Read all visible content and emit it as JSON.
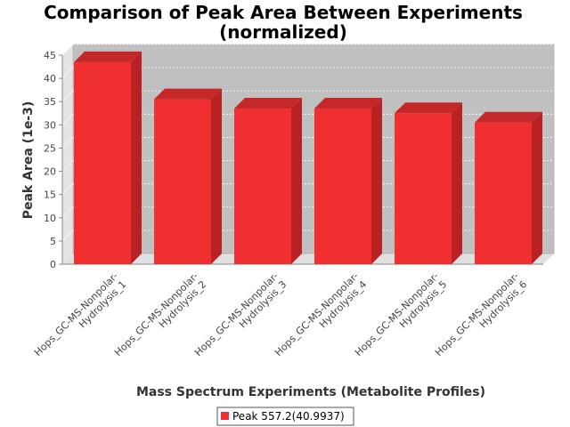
{
  "chart_data": {
    "type": "bar",
    "title_lines": [
      "Comparison of Peak Area Between Experiments",
      "(normalized)"
    ],
    "xlabel": "Mass Spectrum Experiments (Metabolite Profiles)",
    "ylabel": "Peak Area (1e-3)",
    "ylim": [
      0,
      45
    ],
    "yticks": [
      0,
      5,
      10,
      15,
      20,
      25,
      30,
      35,
      40,
      45
    ],
    "grid": true,
    "legend_position": "bottom-center",
    "categories": [
      [
        "Hops_GC-MS-Nonpolar-",
        "Hydrolysis_1"
      ],
      [
        "Hops_GC-MS-Nonpolar-",
        "Hydrolysis_2"
      ],
      [
        "Hops_GC-MS-Nonpolar-",
        "Hydrolysis_3"
      ],
      [
        "Hops_GC-MS-Nonpolar-",
        "Hydrolysis_4"
      ],
      [
        "Hops_GC-MS-Nonpolar-",
        "Hydrolysis_5"
      ],
      [
        "Hops_GC-MS-Nonpolar-",
        "Hydrolysis_6"
      ]
    ],
    "series": [
      {
        "name": "Peak 557.2(40.9937)",
        "color": "#f03030",
        "values": [
          43.5,
          35.5,
          33.5,
          33.5,
          32.5,
          30.5
        ]
      }
    ]
  }
}
